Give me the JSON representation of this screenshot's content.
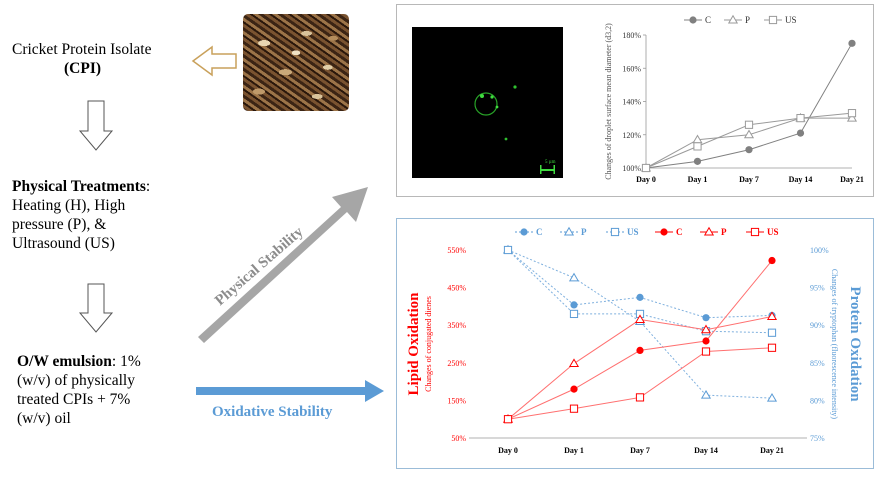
{
  "left": {
    "cpi_line1": "Cricket Protein Isolate",
    "cpi_line2": "(CPI)",
    "treat_title": "Physical Treatments",
    "treat_colon": ":",
    "treat_line1": "Heating (H), High",
    "treat_line2": "pressure (P),  &",
    "treat_line3": "Ultrasound (US)",
    "emul_title": "O/W emulsion",
    "emul_line1": ": 1%",
    "emul_line2": "(w/v) of physically",
    "emul_line3": "treated CPIs + 7%",
    "emul_line4": "(w/v) oil"
  },
  "arrows": {
    "physical_label": "Physical Stability",
    "oxidative_label": "Oxidative Stability"
  },
  "micrograph": {
    "scale_label": "5 µm"
  },
  "colors": {
    "gray_series": "#808080",
    "red": "#ff0000",
    "blue": "#5b9bd5",
    "light_blue": "#9dc3e6",
    "arrow_gray": "#a6a6a6",
    "arrow_blue": "#5b9bd5",
    "open_arrow_brown": "#c9a15b"
  },
  "chart_data": [
    {
      "type": "line",
      "categories": [
        "Day 0",
        "Day 1",
        "Day 7",
        "Day 14",
        "Day 21"
      ],
      "ylabel": "Changes of droplet surface mean diameter (d3,2)",
      "ylim": [
        100,
        180
      ],
      "yticks": [
        "100%",
        "120%",
        "140%",
        "160%",
        "180%"
      ],
      "legend": "top",
      "series": [
        {
          "name": "C",
          "values": [
            100,
            104,
            111,
            121,
            175
          ],
          "marker": "circle-filled"
        },
        {
          "name": "P",
          "values": [
            100,
            117,
            120,
            130,
            130
          ],
          "marker": "triangle-open"
        },
        {
          "name": "US",
          "values": [
            100,
            113,
            126,
            130,
            133
          ],
          "marker": "square-open"
        }
      ]
    },
    {
      "type": "line",
      "categories": [
        "Day 0",
        "Day 1",
        "Day 7",
        "Day 14",
        "Day 21"
      ],
      "ylabel_left": "Lipid Oxidation",
      "ylabel_left_sub": "Changes of conjugated dienes",
      "ylabel_right": "Protein Oxidation",
      "ylabel_right_sub": "Changes of tryptophan  (fluorescence intensity)",
      "ylim_left": [
        50,
        550
      ],
      "yticks_left": [
        "50%",
        "150%",
        "250%",
        "350%",
        "450%",
        "550%"
      ],
      "ylim_right": [
        75,
        100
      ],
      "yticks_right": [
        "75%",
        "80%",
        "85%",
        "90%",
        "95%",
        "100%"
      ],
      "legend": "top",
      "series": [
        {
          "name": "C",
          "axis": "right",
          "values": [
            100,
            92.7,
            93.7,
            91.0,
            91.3
          ],
          "marker": "circle-filled",
          "color": "blue"
        },
        {
          "name": "P",
          "axis": "right",
          "values": [
            100,
            96.3,
            90.5,
            80.7,
            80.3
          ],
          "marker": "triangle-open",
          "color": "blue"
        },
        {
          "name": "US",
          "axis": "right",
          "values": [
            100,
            91.5,
            91.5,
            89.2,
            89.0
          ],
          "marker": "square-open",
          "color": "blue"
        },
        {
          "name": "C",
          "axis": "left",
          "values": [
            100,
            180,
            283,
            308,
            522
          ],
          "marker": "circle-filled",
          "color": "red"
        },
        {
          "name": "P",
          "axis": "left",
          "values": [
            100,
            248,
            365,
            338,
            373
          ],
          "marker": "triangle-open",
          "color": "red"
        },
        {
          "name": "US",
          "axis": "left",
          "values": [
            100,
            128,
            158,
            280,
            290
          ],
          "marker": "square-open",
          "color": "red"
        }
      ]
    }
  ]
}
